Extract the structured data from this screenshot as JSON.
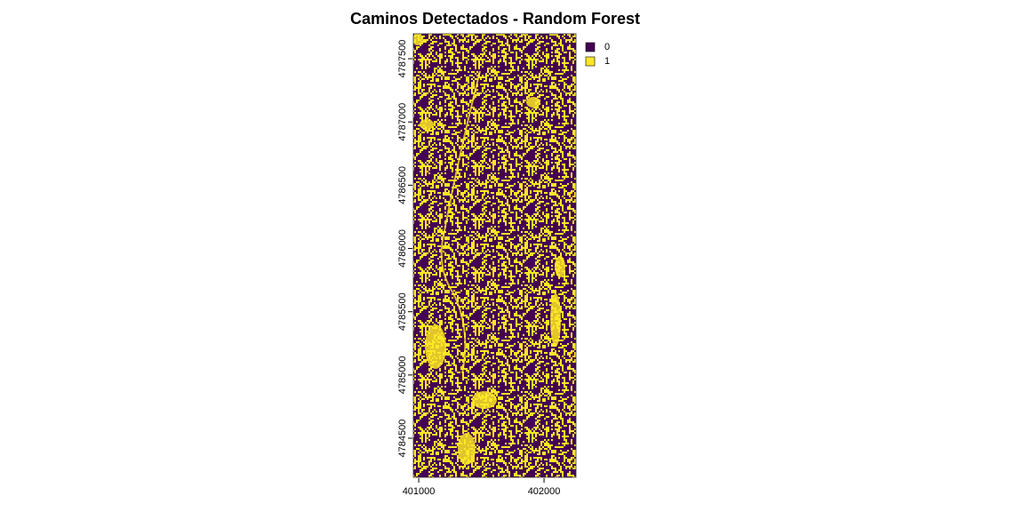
{
  "chart_data": {
    "type": "raster",
    "title": "Caminos Detectados - Random Forest",
    "xlim": [
      400957,
      402255
    ],
    "xticks": [
      401000,
      402000
    ],
    "ylim": [
      4784191,
      4787697
    ],
    "yticks": [
      4784500,
      4785000,
      4785500,
      4786000,
      4786500,
      4787000,
      4787500
    ],
    "legend": [
      {
        "label": "0",
        "color": "#440154"
      },
      {
        "label": "1",
        "color": "#fde725"
      }
    ]
  }
}
